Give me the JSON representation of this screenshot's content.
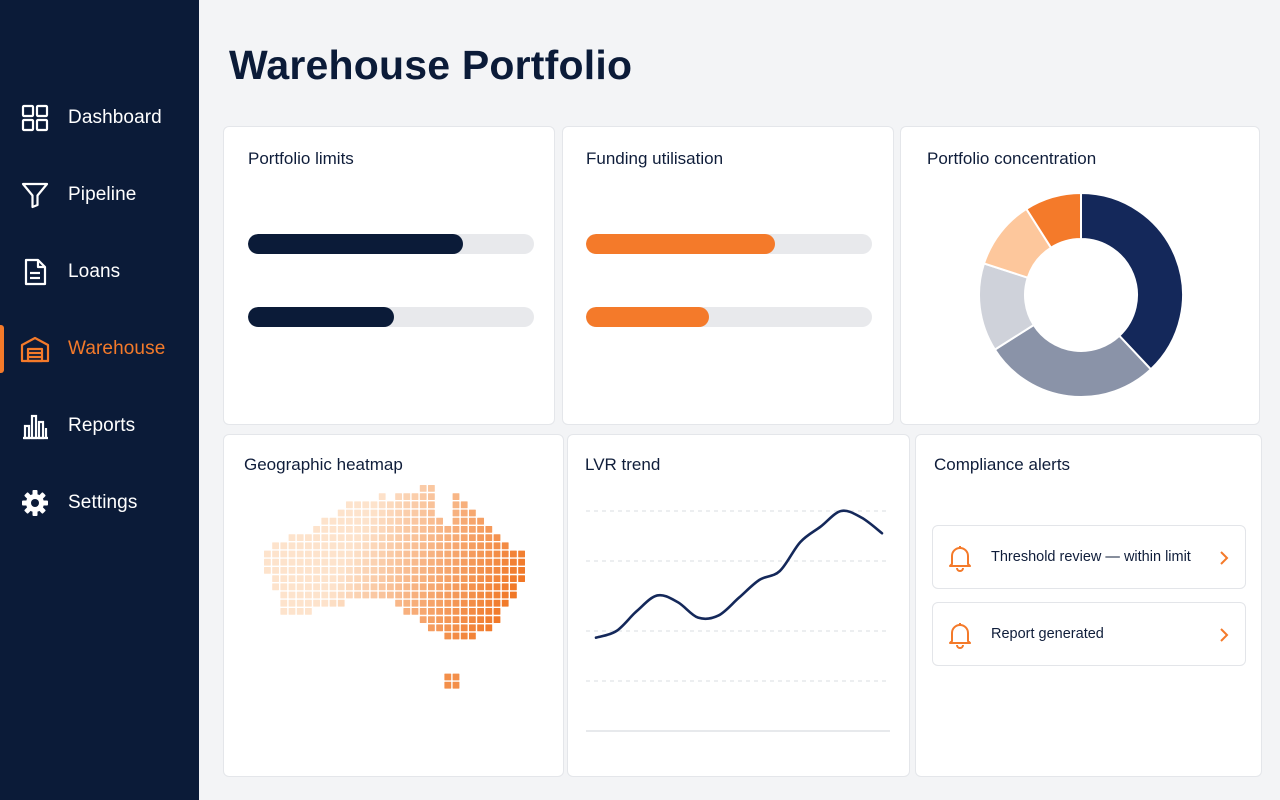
{
  "sidebar": {
    "items": [
      {
        "label": "Dashboard",
        "icon": "grid-icon"
      },
      {
        "label": "Pipeline",
        "icon": "funnel-icon"
      },
      {
        "label": "Loans",
        "icon": "document-icon"
      },
      {
        "label": "Warehouse",
        "icon": "warehouse-icon",
        "active": true
      },
      {
        "label": "Reports",
        "icon": "bar-chart-icon"
      },
      {
        "label": "Settings",
        "icon": "gear-icon"
      }
    ]
  },
  "page": {
    "title": "Warehouse Portfolio"
  },
  "colors": {
    "navy": "#0b1b38",
    "accent": "#f47a2a",
    "sidebar_bg": "#0b1b38"
  },
  "cards": {
    "portfolio_limits": {
      "title": "Portfolio limits",
      "bars": [
        0.75,
        0.51
      ]
    },
    "funding_utilisation": {
      "title": "Funding utilisation",
      "bars": [
        0.66,
        0.43
      ]
    },
    "portfolio_concentration": {
      "title": "Portfolio concentration"
    },
    "geographic_heatmap": {
      "title": "Geographic heatmap"
    },
    "lvr_trend": {
      "title": "LVR trend"
    },
    "compliance_alerts": {
      "title": "Compliance alerts",
      "items": [
        {
          "text": "Threshold review — within limit",
          "icon": "bell-icon"
        },
        {
          "text": "Report generated",
          "icon": "bell-icon"
        }
      ]
    }
  },
  "chart_data": [
    {
      "type": "pie",
      "title": "Portfolio concentration",
      "values": [
        38,
        28,
        14,
        11,
        9
      ],
      "colors": [
        "#14285a",
        "#8a93a8",
        "#cfd2da",
        "#fdc79c",
        "#f47a2a"
      ]
    },
    {
      "type": "line",
      "title": "LVR trend",
      "x": [
        0,
        1,
        2,
        3,
        4,
        5,
        6,
        7,
        8,
        9,
        10,
        11,
        12,
        13,
        14
      ],
      "series": [
        {
          "values": [
            0.12,
            0.18,
            0.36,
            0.5,
            0.44,
            0.3,
            0.32,
            0.48,
            0.64,
            0.72,
            0.98,
            1.12,
            1.26,
            1.2,
            1.06
          ]
        }
      ],
      "color": "#14285a"
    },
    {
      "type": "heatmap",
      "title": "Geographic heatmap",
      "color_low": "#fde3cc",
      "color_high": "#f0731f"
    }
  ]
}
